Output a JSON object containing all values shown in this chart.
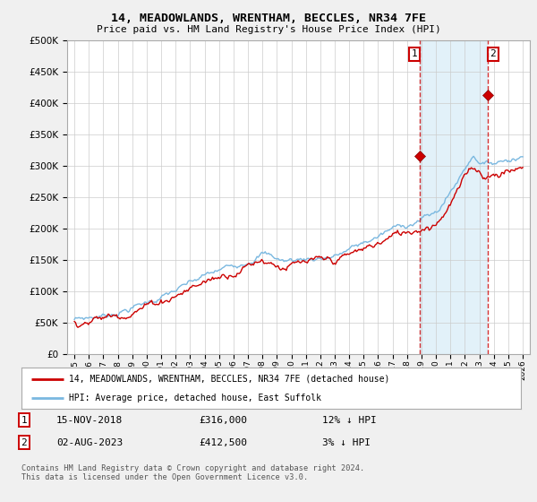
{
  "title": "14, MEADOWLANDS, WRENTHAM, BECCLES, NR34 7FE",
  "subtitle": "Price paid vs. HM Land Registry's House Price Index (HPI)",
  "legend_line1": "14, MEADOWLANDS, WRENTHAM, BECCLES, NR34 7FE (detached house)",
  "legend_line2": "HPI: Average price, detached house, East Suffolk",
  "transaction1_date": "15-NOV-2018",
  "transaction1_price": "£316,000",
  "transaction1_hpi": "12% ↓ HPI",
  "transaction2_date": "02-AUG-2023",
  "transaction2_price": "£412,500",
  "transaction2_hpi": "3% ↓ HPI",
  "footer": "Contains HM Land Registry data © Crown copyright and database right 2024.\nThis data is licensed under the Open Government Licence v3.0.",
  "hpi_color": "#7ab8e0",
  "price_color": "#cc0000",
  "vline_color": "#cc0000",
  "background_color": "#f0f0f0",
  "plot_bg_color": "#ffffff",
  "grid_color": "#cccccc",
  "ylim": [
    0,
    500000
  ],
  "yticks": [
    0,
    50000,
    100000,
    150000,
    200000,
    250000,
    300000,
    350000,
    400000,
    450000,
    500000
  ],
  "transaction1_x": 2018.88,
  "transaction1_y": 316000,
  "transaction2_x": 2023.58,
  "transaction2_y": 412500,
  "xmin": 1994.5,
  "xmax": 2026.5
}
